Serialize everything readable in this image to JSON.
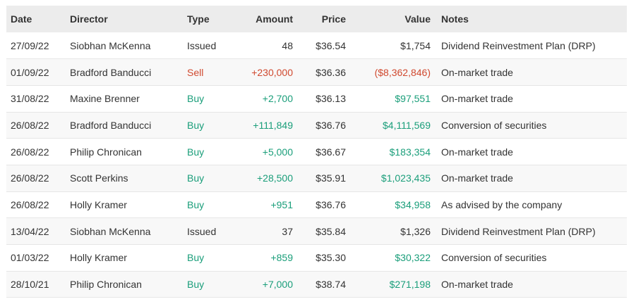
{
  "table": {
    "headers": {
      "date": "Date",
      "director": "Director",
      "type": "Type",
      "amount": "Amount",
      "price": "Price",
      "value": "Value",
      "notes": "Notes"
    },
    "rows": [
      {
        "date": "27/09/22",
        "director": "Siobhan McKenna",
        "type": "Issued",
        "amount": "48",
        "price": "$36.54",
        "value": "$1,754",
        "notes": "Dividend Reinvestment Plan (DRP)",
        "kind": "neutral"
      },
      {
        "date": "01/09/22",
        "director": "Bradford Banducci",
        "type": "Sell",
        "amount": "+230,000",
        "price": "$36.36",
        "value": "($8,362,846)",
        "notes": "On-market trade",
        "kind": "sell"
      },
      {
        "date": "31/08/22",
        "director": "Maxine Brenner",
        "type": "Buy",
        "amount": "+2,700",
        "price": "$36.13",
        "value": "$97,551",
        "notes": "On-market trade",
        "kind": "buy"
      },
      {
        "date": "26/08/22",
        "director": "Bradford Banducci",
        "type": "Buy",
        "amount": "+111,849",
        "price": "$36.76",
        "value": "$4,111,569",
        "notes": "Conversion of securities",
        "kind": "buy"
      },
      {
        "date": "26/08/22",
        "director": "Philip Chronican",
        "type": "Buy",
        "amount": "+5,000",
        "price": "$36.67",
        "value": "$183,354",
        "notes": "On-market trade",
        "kind": "buy"
      },
      {
        "date": "26/08/22",
        "director": "Scott Perkins",
        "type": "Buy",
        "amount": "+28,500",
        "price": "$35.91",
        "value": "$1,023,435",
        "notes": "On-market trade",
        "kind": "buy"
      },
      {
        "date": "26/08/22",
        "director": "Holly Kramer",
        "type": "Buy",
        "amount": "+951",
        "price": "$36.76",
        "value": "$34,958",
        "notes": "As advised by the company",
        "kind": "buy"
      },
      {
        "date": "13/04/22",
        "director": "Siobhan McKenna",
        "type": "Issued",
        "amount": "37",
        "price": "$35.84",
        "value": "$1,326",
        "notes": "Dividend Reinvestment Plan (DRP)",
        "kind": "neutral"
      },
      {
        "date": "01/03/22",
        "director": "Holly Kramer",
        "type": "Buy",
        "amount": "+859",
        "price": "$35.30",
        "value": "$30,322",
        "notes": "Conversion of securities",
        "kind": "buy"
      },
      {
        "date": "28/10/21",
        "director": "Philip Chronican",
        "type": "Buy",
        "amount": "+7,000",
        "price": "$38.74",
        "value": "$271,198",
        "notes": "On-market trade",
        "kind": "buy"
      }
    ]
  },
  "colors": {
    "buy": "#1a9e7a",
    "sell": "#d0492f",
    "header_bg": "#ececec",
    "row_alt_bg": "#f8f8f8"
  }
}
